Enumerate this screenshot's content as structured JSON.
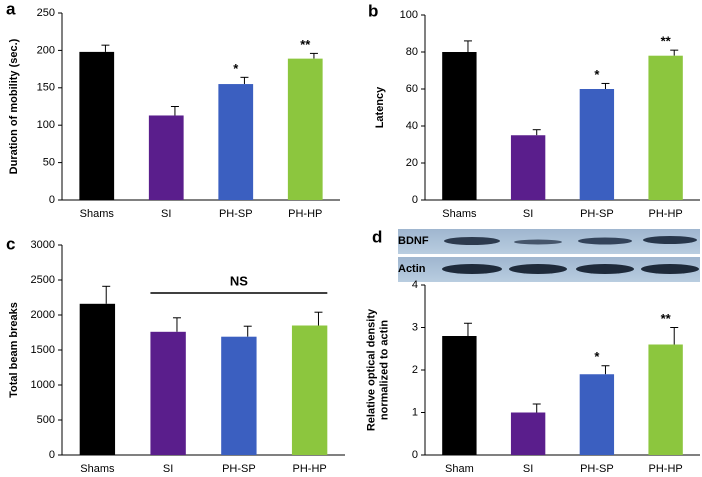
{
  "chart_data": [
    {
      "type": "bar",
      "panel": "a",
      "ylabel": [
        "Duration of mobility (sec.)"
      ],
      "categories": [
        "Shams",
        "SI",
        "PH-SP",
        "PH-HP"
      ],
      "values": [
        198,
        113,
        155,
        189
      ],
      "errors": [
        9,
        12,
        9,
        7
      ],
      "colors": [
        "#000000",
        "#5a1e8c",
        "#3b5fc0",
        "#8cc63e"
      ],
      "significance": [
        null,
        null,
        "*",
        "**"
      ],
      "ylim": [
        0,
        250
      ],
      "yticks": [
        0,
        50,
        100,
        150,
        200,
        250
      ]
    },
    {
      "type": "bar",
      "panel": "b",
      "ylabel": [
        "Latency"
      ],
      "categories": [
        "Shams",
        "SI",
        "PH-SP",
        "PH-HP"
      ],
      "values": [
        80,
        35,
        60,
        78
      ],
      "errors": [
        6,
        3,
        3,
        3
      ],
      "colors": [
        "#000000",
        "#5a1e8c",
        "#3b5fc0",
        "#8cc63e"
      ],
      "significance": [
        null,
        null,
        "*",
        "**"
      ],
      "ylim": [
        0,
        100
      ],
      "yticks": [
        0,
        20,
        40,
        60,
        80,
        100
      ]
    },
    {
      "type": "bar",
      "panel": "c",
      "ylabel": [
        "Total beam breaks"
      ],
      "categories": [
        "Shams",
        "SI",
        "PH-SP",
        "PH-HP"
      ],
      "values": [
        2160,
        1760,
        1690,
        1850
      ],
      "errors": [
        250,
        200,
        150,
        190
      ],
      "colors": [
        "#000000",
        "#5a1e8c",
        "#3b5fc0",
        "#8cc63e"
      ],
      "bracket": "NS",
      "ylim": [
        0,
        3000
      ],
      "yticks": [
        0,
        500,
        1000,
        1500,
        2000,
        2500,
        3000
      ]
    },
    {
      "type": "bar",
      "panel": "d",
      "ylabel": [
        "Relative optical density",
        "normalized to actin"
      ],
      "blot_labels": [
        "BDNF",
        "Actin"
      ],
      "categories": [
        "Sham",
        "SI",
        "PH-SP",
        "PH-HP"
      ],
      "values": [
        2.8,
        1.0,
        1.9,
        2.6
      ],
      "errors": [
        0.3,
        0.2,
        0.2,
        0.4
      ],
      "colors": [
        "#000000",
        "#5a1e8c",
        "#3b5fc0",
        "#8cc63e"
      ],
      "significance": [
        null,
        null,
        "*",
        "**"
      ],
      "ylim": [
        0,
        4
      ],
      "yticks": [
        0,
        1,
        2,
        3,
        4
      ]
    }
  ]
}
